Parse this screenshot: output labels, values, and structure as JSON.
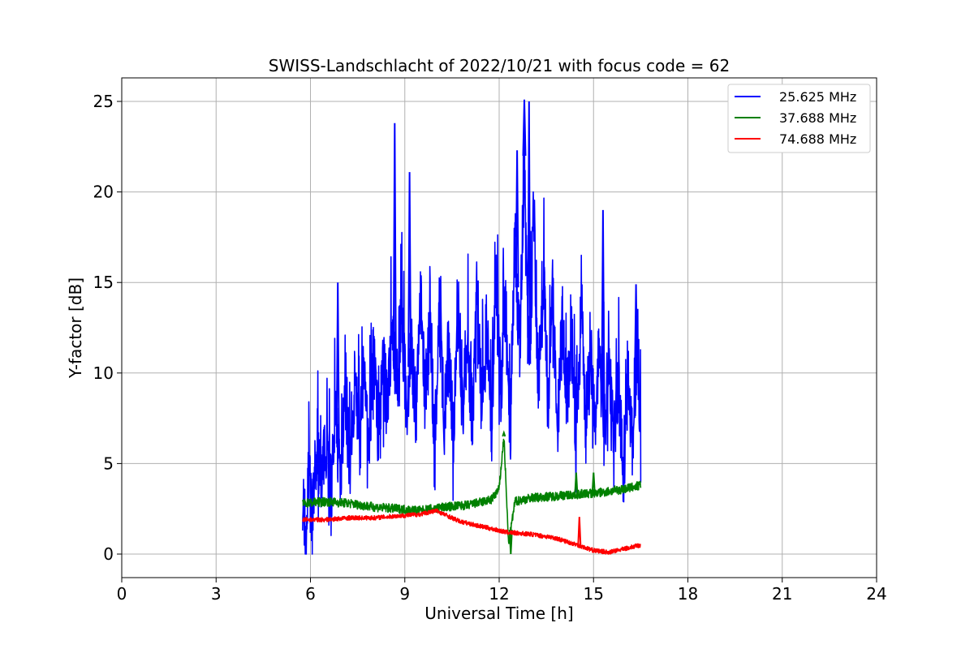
{
  "chart_data": {
    "type": "line",
    "title": "SWISS-Landschlacht of 2022/10/21 with focus code = 62",
    "xlabel": "Universal Time [h]",
    "ylabel": "Y-factor [dB]",
    "xlim": [
      0,
      24
    ],
    "ylim": [
      -1.3,
      26.3
    ],
    "xticks": [
      0,
      3,
      6,
      9,
      12,
      15,
      18,
      21,
      24
    ],
    "yticks": [
      0,
      5,
      10,
      15,
      20,
      25
    ],
    "grid": true,
    "legend_position": "top-right",
    "series": [
      {
        "name": "25.625 MHz",
        "color": "#0000ff",
        "x": [
          5.75,
          5.85,
          5.95,
          6.05,
          6.2,
          6.35,
          6.5,
          6.65,
          6.8,
          6.95,
          7.1,
          7.25,
          7.4,
          7.55,
          7.7,
          7.85,
          8.0,
          8.15,
          8.3,
          8.45,
          8.6,
          8.75,
          8.9,
          9.05,
          9.2,
          9.35,
          9.5,
          9.65,
          9.8,
          9.95,
          10.1,
          10.25,
          10.4,
          10.55,
          10.7,
          10.85,
          11.0,
          11.15,
          11.3,
          11.45,
          11.6,
          11.75,
          11.9,
          12.05,
          12.2,
          12.35,
          12.5,
          12.65,
          12.8,
          12.95,
          13.1,
          13.25,
          13.4,
          13.55,
          13.7,
          13.85,
          14.0,
          14.15,
          14.3,
          14.45,
          14.6,
          14.75,
          14.9,
          15.05,
          15.2,
          15.35,
          15.5,
          15.65,
          15.8,
          15.95,
          16.1,
          16.25,
          16.4,
          16.5
        ],
        "y": [
          3.5,
          1.0,
          4.5,
          2.0,
          5.5,
          3.5,
          6.5,
          3.0,
          7.5,
          4.5,
          8.5,
          5.0,
          9.5,
          6.0,
          10.0,
          5.5,
          11.5,
          7.0,
          10.5,
          8.0,
          12.0,
          9.5,
          13.0,
          8.0,
          11.5,
          7.5,
          14.0,
          8.5,
          12.0,
          6.0,
          13.5,
          7.5,
          11.0,
          6.5,
          13.0,
          8.5,
          12.0,
          7.0,
          14.5,
          8.0,
          12.5,
          7.5,
          15.0,
          9.0,
          14.0,
          6.5,
          18.0,
          11.0,
          22.0,
          10.5,
          19.0,
          9.5,
          16.0,
          8.5,
          14.5,
          7.0,
          13.0,
          8.5,
          12.0,
          6.5,
          13.0,
          7.0,
          11.5,
          6.0,
          12.5,
          7.0,
          10.5,
          5.5,
          9.5,
          4.5,
          10.0,
          5.0,
          12.0,
          6.0
        ],
        "spikes": [
          [
            6.87,
            15.0
          ],
          [
            8.68,
            23.8
          ],
          [
            9.15,
            21.1
          ],
          [
            12.57,
            22.3
          ],
          [
            12.8,
            25.1
          ],
          [
            12.95,
            25.0
          ],
          [
            15.3,
            19.0
          ],
          [
            16.35,
            14.9
          ]
        ]
      },
      {
        "name": "37.688 MHz",
        "color": "#008000",
        "x": [
          5.75,
          6.5,
          7.25,
          8.0,
          8.75,
          9.5,
          10.25,
          11.0,
          11.75,
          12.0,
          12.15,
          12.3,
          12.5,
          13.0,
          13.75,
          14.5,
          15.25,
          16.0,
          16.5
        ],
        "y": [
          2.8,
          2.9,
          2.8,
          2.6,
          2.5,
          2.4,
          2.6,
          2.7,
          3.0,
          3.6,
          6.5,
          0.5,
          2.9,
          3.1,
          3.2,
          3.3,
          3.4,
          3.6,
          3.8
        ],
        "spikes": [
          [
            12.15,
            6.7
          ],
          [
            12.37,
            0.0
          ],
          [
            14.45,
            4.5
          ],
          [
            15.0,
            4.5
          ]
        ]
      },
      {
        "name": "74.688 MHz",
        "color": "#ff0000",
        "x": [
          5.75,
          6.5,
          7.25,
          8.0,
          8.75,
          9.5,
          10.0,
          10.75,
          11.5,
          12.25,
          13.0,
          13.75,
          14.5,
          14.65,
          15.0,
          15.5,
          16.0,
          16.5
        ],
        "y": [
          1.9,
          1.9,
          2.0,
          2.0,
          2.1,
          2.2,
          2.4,
          1.8,
          1.5,
          1.2,
          1.1,
          0.9,
          0.5,
          0.4,
          0.2,
          0.1,
          0.3,
          0.5
        ],
        "spikes": [
          [
            14.55,
            2.05
          ]
        ]
      }
    ]
  }
}
